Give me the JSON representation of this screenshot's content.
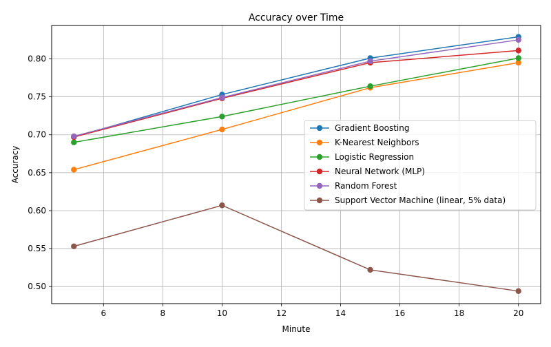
{
  "chart_data": {
    "type": "line",
    "title": "Accuracy over Time",
    "xlabel": "Minute",
    "ylabel": "Accuracy",
    "x": [
      5,
      10,
      15,
      20
    ],
    "xlim": [
      4.25,
      20.75
    ],
    "ylim": [
      0.4775,
      0.844
    ],
    "xticks": [
      6,
      8,
      10,
      12,
      14,
      16,
      18,
      20
    ],
    "yticks": [
      0.5,
      0.55,
      0.6,
      0.65,
      0.7,
      0.75,
      0.8
    ],
    "xtick_labels": [
      "6",
      "8",
      "10",
      "12",
      "14",
      "16",
      "18",
      "20"
    ],
    "ytick_labels": [
      "0.50",
      "0.55",
      "0.60",
      "0.65",
      "0.70",
      "0.75",
      "0.80"
    ],
    "grid": true,
    "legend_position": "center-right",
    "series": [
      {
        "name": "Gradient Boosting",
        "color": "#1f77b4",
        "marker": "circle",
        "values": [
          0.697,
          0.753,
          0.801,
          0.829
        ]
      },
      {
        "name": "K-Nearest Neighbors",
        "color": "#ff7f0e",
        "marker": "circle",
        "values": [
          0.654,
          0.707,
          0.762,
          0.795
        ]
      },
      {
        "name": "Logistic Regression",
        "color": "#2ca02c",
        "marker": "circle",
        "values": [
          0.69,
          0.724,
          0.764,
          0.801
        ]
      },
      {
        "name": "Neural Network (MLP)",
        "color": "#d62728",
        "marker": "circle",
        "values": [
          0.697,
          0.748,
          0.795,
          0.811
        ]
      },
      {
        "name": "Random Forest",
        "color": "#9467bd",
        "marker": "circle",
        "values": [
          0.698,
          0.749,
          0.797,
          0.825
        ]
      },
      {
        "name": "Support Vector Machine (linear, 5% data)",
        "color": "#8c564b",
        "marker": "circle",
        "values": [
          0.553,
          0.607,
          0.522,
          0.494
        ]
      }
    ]
  }
}
